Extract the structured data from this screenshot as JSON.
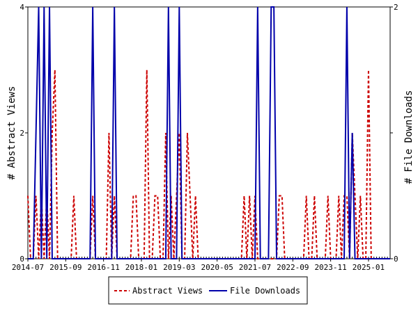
{
  "chart_data": {
    "type": "line",
    "x_start": "2014-07",
    "x_end": "2025-09",
    "x_tick_labels": [
      "2014-07",
      "2015-09",
      "2016-11",
      "2018-01",
      "2019-03",
      "2020-05",
      "2021-07",
      "2022-09",
      "2023-11",
      "2025-01"
    ],
    "y_left": {
      "label": "# Abstract Views",
      "ylim": [
        0,
        4
      ],
      "ticks": [
        "0",
        "2",
        "4"
      ]
    },
    "y_right": {
      "label": "# File Downloads",
      "ylim": [
        0,
        2
      ],
      "ticks": [
        "0",
        "1",
        "2"
      ]
    },
    "legend_position": "bottom-center",
    "series": [
      {
        "name": "Abstract Views",
        "axis": "left",
        "color": "#cc0000",
        "style": "dashed",
        "points": [
          [
            "2014-07",
            1
          ],
          [
            "2014-08",
            0
          ],
          [
            "2014-09",
            0
          ],
          [
            "2014-10",
            1
          ],
          [
            "2014-11",
            0
          ],
          [
            "2014-12",
            1
          ],
          [
            "2015-01",
            0
          ],
          [
            "2015-02",
            1
          ],
          [
            "2015-03",
            0
          ],
          [
            "2015-04",
            2
          ],
          [
            "2015-05",
            3
          ],
          [
            "2015-06",
            0
          ],
          [
            "2015-07",
            0
          ],
          [
            "2015-08",
            0
          ],
          [
            "2015-09",
            0
          ],
          [
            "2015-10",
            0
          ],
          [
            "2015-11",
            0
          ],
          [
            "2015-12",
            1
          ],
          [
            "2016-01",
            0
          ],
          [
            "2016-02",
            0
          ],
          [
            "2016-03",
            0
          ],
          [
            "2016-04",
            0
          ],
          [
            "2016-05",
            0
          ],
          [
            "2016-06",
            0
          ],
          [
            "2016-07",
            1
          ],
          [
            "2016-08",
            0
          ],
          [
            "2016-09",
            0
          ],
          [
            "2016-10",
            0
          ],
          [
            "2016-11",
            0
          ],
          [
            "2016-12",
            0
          ],
          [
            "2017-01",
            2
          ],
          [
            "2017-02",
            0
          ],
          [
            "2017-03",
            1
          ],
          [
            "2017-04",
            0
          ],
          [
            "2017-05",
            0
          ],
          [
            "2017-06",
            0
          ],
          [
            "2017-07",
            0
          ],
          [
            "2017-08",
            0
          ],
          [
            "2017-09",
            0
          ],
          [
            "2017-10",
            1
          ],
          [
            "2017-11",
            1
          ],
          [
            "2017-12",
            0
          ],
          [
            "2018-01",
            0
          ],
          [
            "2018-02",
            0
          ],
          [
            "2018-03",
            3
          ],
          [
            "2018-04",
            0
          ],
          [
            "2018-05",
            0
          ],
          [
            "2018-06",
            1
          ],
          [
            "2018-07",
            1
          ],
          [
            "2018-08",
            0
          ],
          [
            "2018-09",
            0
          ],
          [
            "2018-10",
            2
          ],
          [
            "2018-11",
            0
          ],
          [
            "2018-12",
            1
          ],
          [
            "2019-01",
            0
          ],
          [
            "2019-02",
            1
          ],
          [
            "2019-03",
            2
          ],
          [
            "2019-04",
            0
          ],
          [
            "2019-05",
            0
          ],
          [
            "2019-06",
            2
          ],
          [
            "2019-07",
            1
          ],
          [
            "2019-08",
            0
          ],
          [
            "2019-09",
            1
          ],
          [
            "2019-10",
            0
          ],
          [
            "2019-11",
            0
          ],
          [
            "2019-12",
            0
          ],
          [
            "2020-01",
            0
          ],
          [
            "2020-02",
            0
          ],
          [
            "2020-03",
            0
          ],
          [
            "2020-04",
            0
          ],
          [
            "2020-05",
            0
          ],
          [
            "2020-06",
            0
          ],
          [
            "2020-07",
            0
          ],
          [
            "2020-08",
            0
          ],
          [
            "2020-09",
            0
          ],
          [
            "2020-10",
            0
          ],
          [
            "2020-11",
            0
          ],
          [
            "2020-12",
            0
          ],
          [
            "2021-01",
            0
          ],
          [
            "2021-02",
            0
          ],
          [
            "2021-03",
            1
          ],
          [
            "2021-04",
            0
          ],
          [
            "2021-05",
            1
          ],
          [
            "2021-06",
            0
          ],
          [
            "2021-07",
            1
          ],
          [
            "2021-08",
            0
          ],
          [
            "2021-09",
            0
          ],
          [
            "2021-10",
            0
          ],
          [
            "2021-11",
            0
          ],
          [
            "2021-12",
            0
          ],
          [
            "2022-01",
            0
          ],
          [
            "2022-02",
            0
          ],
          [
            "2022-03",
            0
          ],
          [
            "2022-04",
            1
          ],
          [
            "2022-05",
            1
          ],
          [
            "2022-06",
            0
          ],
          [
            "2022-07",
            0
          ],
          [
            "2022-08",
            0
          ],
          [
            "2022-09",
            0
          ],
          [
            "2022-10",
            0
          ],
          [
            "2022-11",
            0
          ],
          [
            "2022-12",
            0
          ],
          [
            "2023-01",
            0
          ],
          [
            "2023-02",
            1
          ],
          [
            "2023-03",
            0
          ],
          [
            "2023-04",
            0
          ],
          [
            "2023-05",
            1
          ],
          [
            "2023-06",
            0
          ],
          [
            "2023-07",
            0
          ],
          [
            "2023-08",
            0
          ],
          [
            "2023-09",
            0
          ],
          [
            "2023-10",
            1
          ],
          [
            "2023-11",
            0
          ],
          [
            "2023-12",
            0
          ],
          [
            "2024-01",
            0
          ],
          [
            "2024-02",
            1
          ],
          [
            "2024-03",
            0
          ],
          [
            "2024-04",
            1
          ],
          [
            "2024-05",
            1
          ],
          [
            "2024-06",
            0
          ],
          [
            "2024-07",
            2
          ],
          [
            "2024-08",
            1
          ],
          [
            "2024-09",
            0
          ],
          [
            "2024-10",
            1
          ],
          [
            "2024-11",
            0
          ],
          [
            "2024-12",
            0
          ],
          [
            "2025-01",
            3
          ],
          [
            "2025-02",
            0
          ],
          [
            "2025-03",
            0
          ],
          [
            "2025-04",
            0
          ],
          [
            "2025-05",
            0
          ],
          [
            "2025-06",
            0
          ],
          [
            "2025-07",
            0
          ],
          [
            "2025-08",
            0
          ],
          [
            "2025-09",
            0
          ]
        ]
      },
      {
        "name": "File Downloads",
        "axis": "right",
        "color": "#0000aa",
        "style": "solid",
        "points": [
          [
            "2014-07",
            0
          ],
          [
            "2014-08",
            0
          ],
          [
            "2014-09",
            0
          ],
          [
            "2014-10",
            1
          ],
          [
            "2014-11",
            2
          ],
          [
            "2014-12",
            0
          ],
          [
            "2015-01",
            2
          ],
          [
            "2015-02",
            0
          ],
          [
            "2015-03",
            2
          ],
          [
            "2015-04",
            0
          ],
          [
            "2015-05",
            0
          ],
          [
            "2015-06",
            0
          ],
          [
            "2015-07",
            0
          ],
          [
            "2015-08",
            0
          ],
          [
            "2015-09",
            0
          ],
          [
            "2015-10",
            0
          ],
          [
            "2015-11",
            0
          ],
          [
            "2015-12",
            0
          ],
          [
            "2016-01",
            0
          ],
          [
            "2016-02",
            0
          ],
          [
            "2016-03",
            0
          ],
          [
            "2016-04",
            0
          ],
          [
            "2016-05",
            0
          ],
          [
            "2016-06",
            0
          ],
          [
            "2016-07",
            2
          ],
          [
            "2016-08",
            0
          ],
          [
            "2016-09",
            0
          ],
          [
            "2016-10",
            0
          ],
          [
            "2016-11",
            0
          ],
          [
            "2016-12",
            0
          ],
          [
            "2017-01",
            0
          ],
          [
            "2017-02",
            0
          ],
          [
            "2017-03",
            2
          ],
          [
            "2017-04",
            0
          ],
          [
            "2017-05",
            0
          ],
          [
            "2017-06",
            0
          ],
          [
            "2017-07",
            0
          ],
          [
            "2017-08",
            0
          ],
          [
            "2017-09",
            0
          ],
          [
            "2017-10",
            0
          ],
          [
            "2017-11",
            0
          ],
          [
            "2017-12",
            0
          ],
          [
            "2018-01",
            0
          ],
          [
            "2018-02",
            0
          ],
          [
            "2018-03",
            0
          ],
          [
            "2018-04",
            0
          ],
          [
            "2018-05",
            0
          ],
          [
            "2018-06",
            0
          ],
          [
            "2018-07",
            0
          ],
          [
            "2018-08",
            0
          ],
          [
            "2018-09",
            0
          ],
          [
            "2018-10",
            0
          ],
          [
            "2018-11",
            2
          ],
          [
            "2018-12",
            0
          ],
          [
            "2019-01",
            0
          ],
          [
            "2019-02",
            0
          ],
          [
            "2019-03",
            2
          ],
          [
            "2019-04",
            0
          ],
          [
            "2019-05",
            0
          ],
          [
            "2019-06",
            0
          ],
          [
            "2019-07",
            0
          ],
          [
            "2019-08",
            0
          ],
          [
            "2019-09",
            0
          ],
          [
            "2019-10",
            0
          ],
          [
            "2019-11",
            0
          ],
          [
            "2019-12",
            0
          ],
          [
            "2020-01",
            0
          ],
          [
            "2020-02",
            0
          ],
          [
            "2020-03",
            0
          ],
          [
            "2020-04",
            0
          ],
          [
            "2020-05",
            0
          ],
          [
            "2020-06",
            0
          ],
          [
            "2020-07",
            0
          ],
          [
            "2020-08",
            0
          ],
          [
            "2020-09",
            0
          ],
          [
            "2020-10",
            0
          ],
          [
            "2020-11",
            0
          ],
          [
            "2020-12",
            0
          ],
          [
            "2021-01",
            0
          ],
          [
            "2021-02",
            0
          ],
          [
            "2021-03",
            0
          ],
          [
            "2021-04",
            0
          ],
          [
            "2021-05",
            0
          ],
          [
            "2021-06",
            0
          ],
          [
            "2021-07",
            0
          ],
          [
            "2021-08",
            2
          ],
          [
            "2021-09",
            0
          ],
          [
            "2021-10",
            0
          ],
          [
            "2021-11",
            0
          ],
          [
            "2021-12",
            0
          ],
          [
            "2022-01",
            2
          ],
          [
            "2022-02",
            2
          ],
          [
            "2022-03",
            0
          ],
          [
            "2022-04",
            0
          ],
          [
            "2022-05",
            0
          ],
          [
            "2022-06",
            0
          ],
          [
            "2022-07",
            0
          ],
          [
            "2022-08",
            0
          ],
          [
            "2022-09",
            0
          ],
          [
            "2022-10",
            0
          ],
          [
            "2022-11",
            0
          ],
          [
            "2022-12",
            0
          ],
          [
            "2023-01",
            0
          ],
          [
            "2023-02",
            0
          ],
          [
            "2023-03",
            0
          ],
          [
            "2023-04",
            0
          ],
          [
            "2023-05",
            0
          ],
          [
            "2023-06",
            0
          ],
          [
            "2023-07",
            0
          ],
          [
            "2023-08",
            0
          ],
          [
            "2023-09",
            0
          ],
          [
            "2023-10",
            0
          ],
          [
            "2023-11",
            0
          ],
          [
            "2023-12",
            0
          ],
          [
            "2024-01",
            0
          ],
          [
            "2024-02",
            0
          ],
          [
            "2024-03",
            0
          ],
          [
            "2024-04",
            0
          ],
          [
            "2024-05",
            2
          ],
          [
            "2024-06",
            0
          ],
          [
            "2024-07",
            1
          ],
          [
            "2024-08",
            0
          ],
          [
            "2024-09",
            0
          ],
          [
            "2024-10",
            0
          ],
          [
            "2024-11",
            0
          ],
          [
            "2024-12",
            0
          ],
          [
            "2025-01",
            0
          ],
          [
            "2025-02",
            0
          ],
          [
            "2025-03",
            0
          ],
          [
            "2025-04",
            0
          ],
          [
            "2025-05",
            0
          ],
          [
            "2025-06",
            0
          ],
          [
            "2025-07",
            0
          ],
          [
            "2025-08",
            0
          ],
          [
            "2025-09",
            0
          ]
        ]
      }
    ]
  }
}
